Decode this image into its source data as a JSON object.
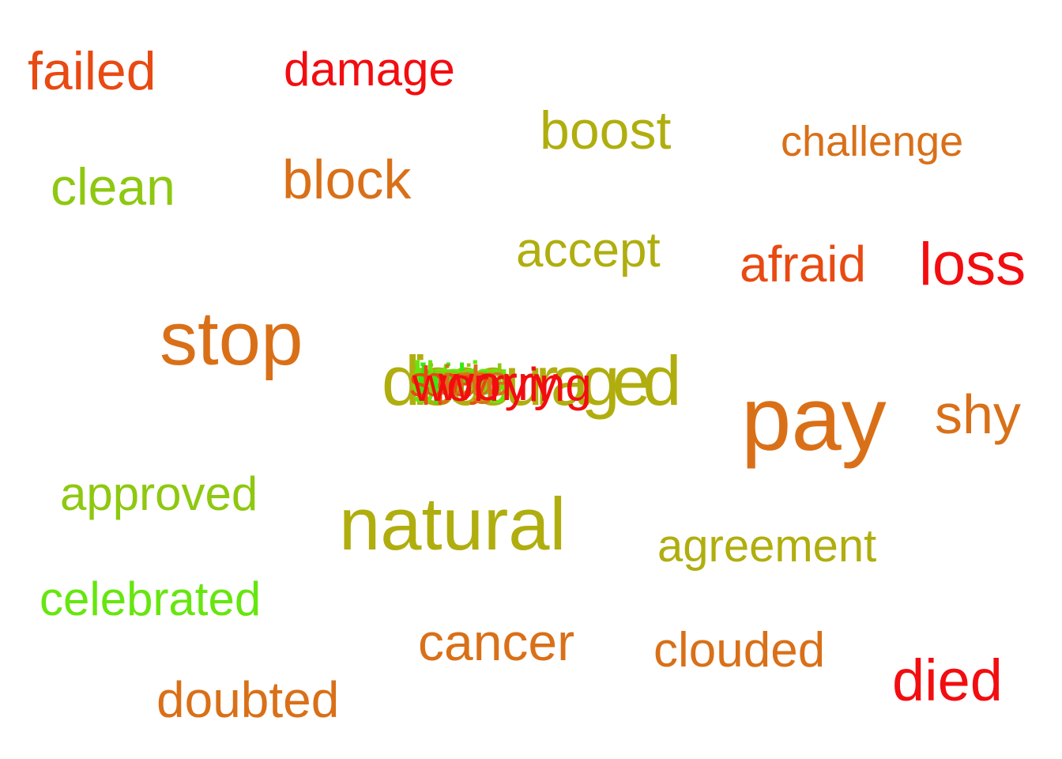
{
  "words": [
    {
      "text": "failed",
      "color": "#e84a12"
    },
    {
      "text": "damage",
      "color": "#f20d10"
    },
    {
      "text": "boost",
      "color": "#b0ae0e"
    },
    {
      "text": "challenge",
      "color": "#d97018"
    },
    {
      "text": "clean",
      "color": "#8ec810"
    },
    {
      "text": "block",
      "color": "#d97018"
    },
    {
      "text": "accept",
      "color": "#b0ae0e"
    },
    {
      "text": "afraid",
      "color": "#e84a12"
    },
    {
      "text": "loss",
      "color": "#f20d10"
    },
    {
      "text": "stop",
      "color": "#d97018"
    },
    {
      "text": "pay",
      "color": "#d97018"
    },
    {
      "text": "shy",
      "color": "#d97018"
    },
    {
      "text": "approved",
      "color": "#8ec810"
    },
    {
      "text": "natural",
      "color": "#b0ae0e"
    },
    {
      "text": "agreement",
      "color": "#b0ae0e"
    },
    {
      "text": "celebrated",
      "color": "#66e60e"
    },
    {
      "text": "cancer",
      "color": "#d97018"
    },
    {
      "text": "clouded",
      "color": "#d97018"
    },
    {
      "text": "died",
      "color": "#f20d10"
    },
    {
      "text": "doubted",
      "color": "#d97018"
    },
    {
      "text": "discouraged",
      "color": "#b0ae0e"
    },
    {
      "text": "worry",
      "color": "#f20d10"
    },
    {
      "text": "worrying",
      "color": "#f20d10"
    }
  ],
  "overlap_cluster": [
    {
      "color": "#f20d10"
    },
    {
      "color": "#66e60e"
    },
    {
      "color": "#e84a12"
    },
    {
      "color": "#8ec810"
    },
    {
      "color": "#d97018"
    },
    {
      "color": "#38e80e"
    },
    {
      "color": "#f20d10"
    },
    {
      "color": "#b0ae0e"
    },
    {
      "color": "#66e60e"
    },
    {
      "color": "#e84a12"
    },
    {
      "color": "#38e80e"
    },
    {
      "color": "#8ec810"
    }
  ]
}
